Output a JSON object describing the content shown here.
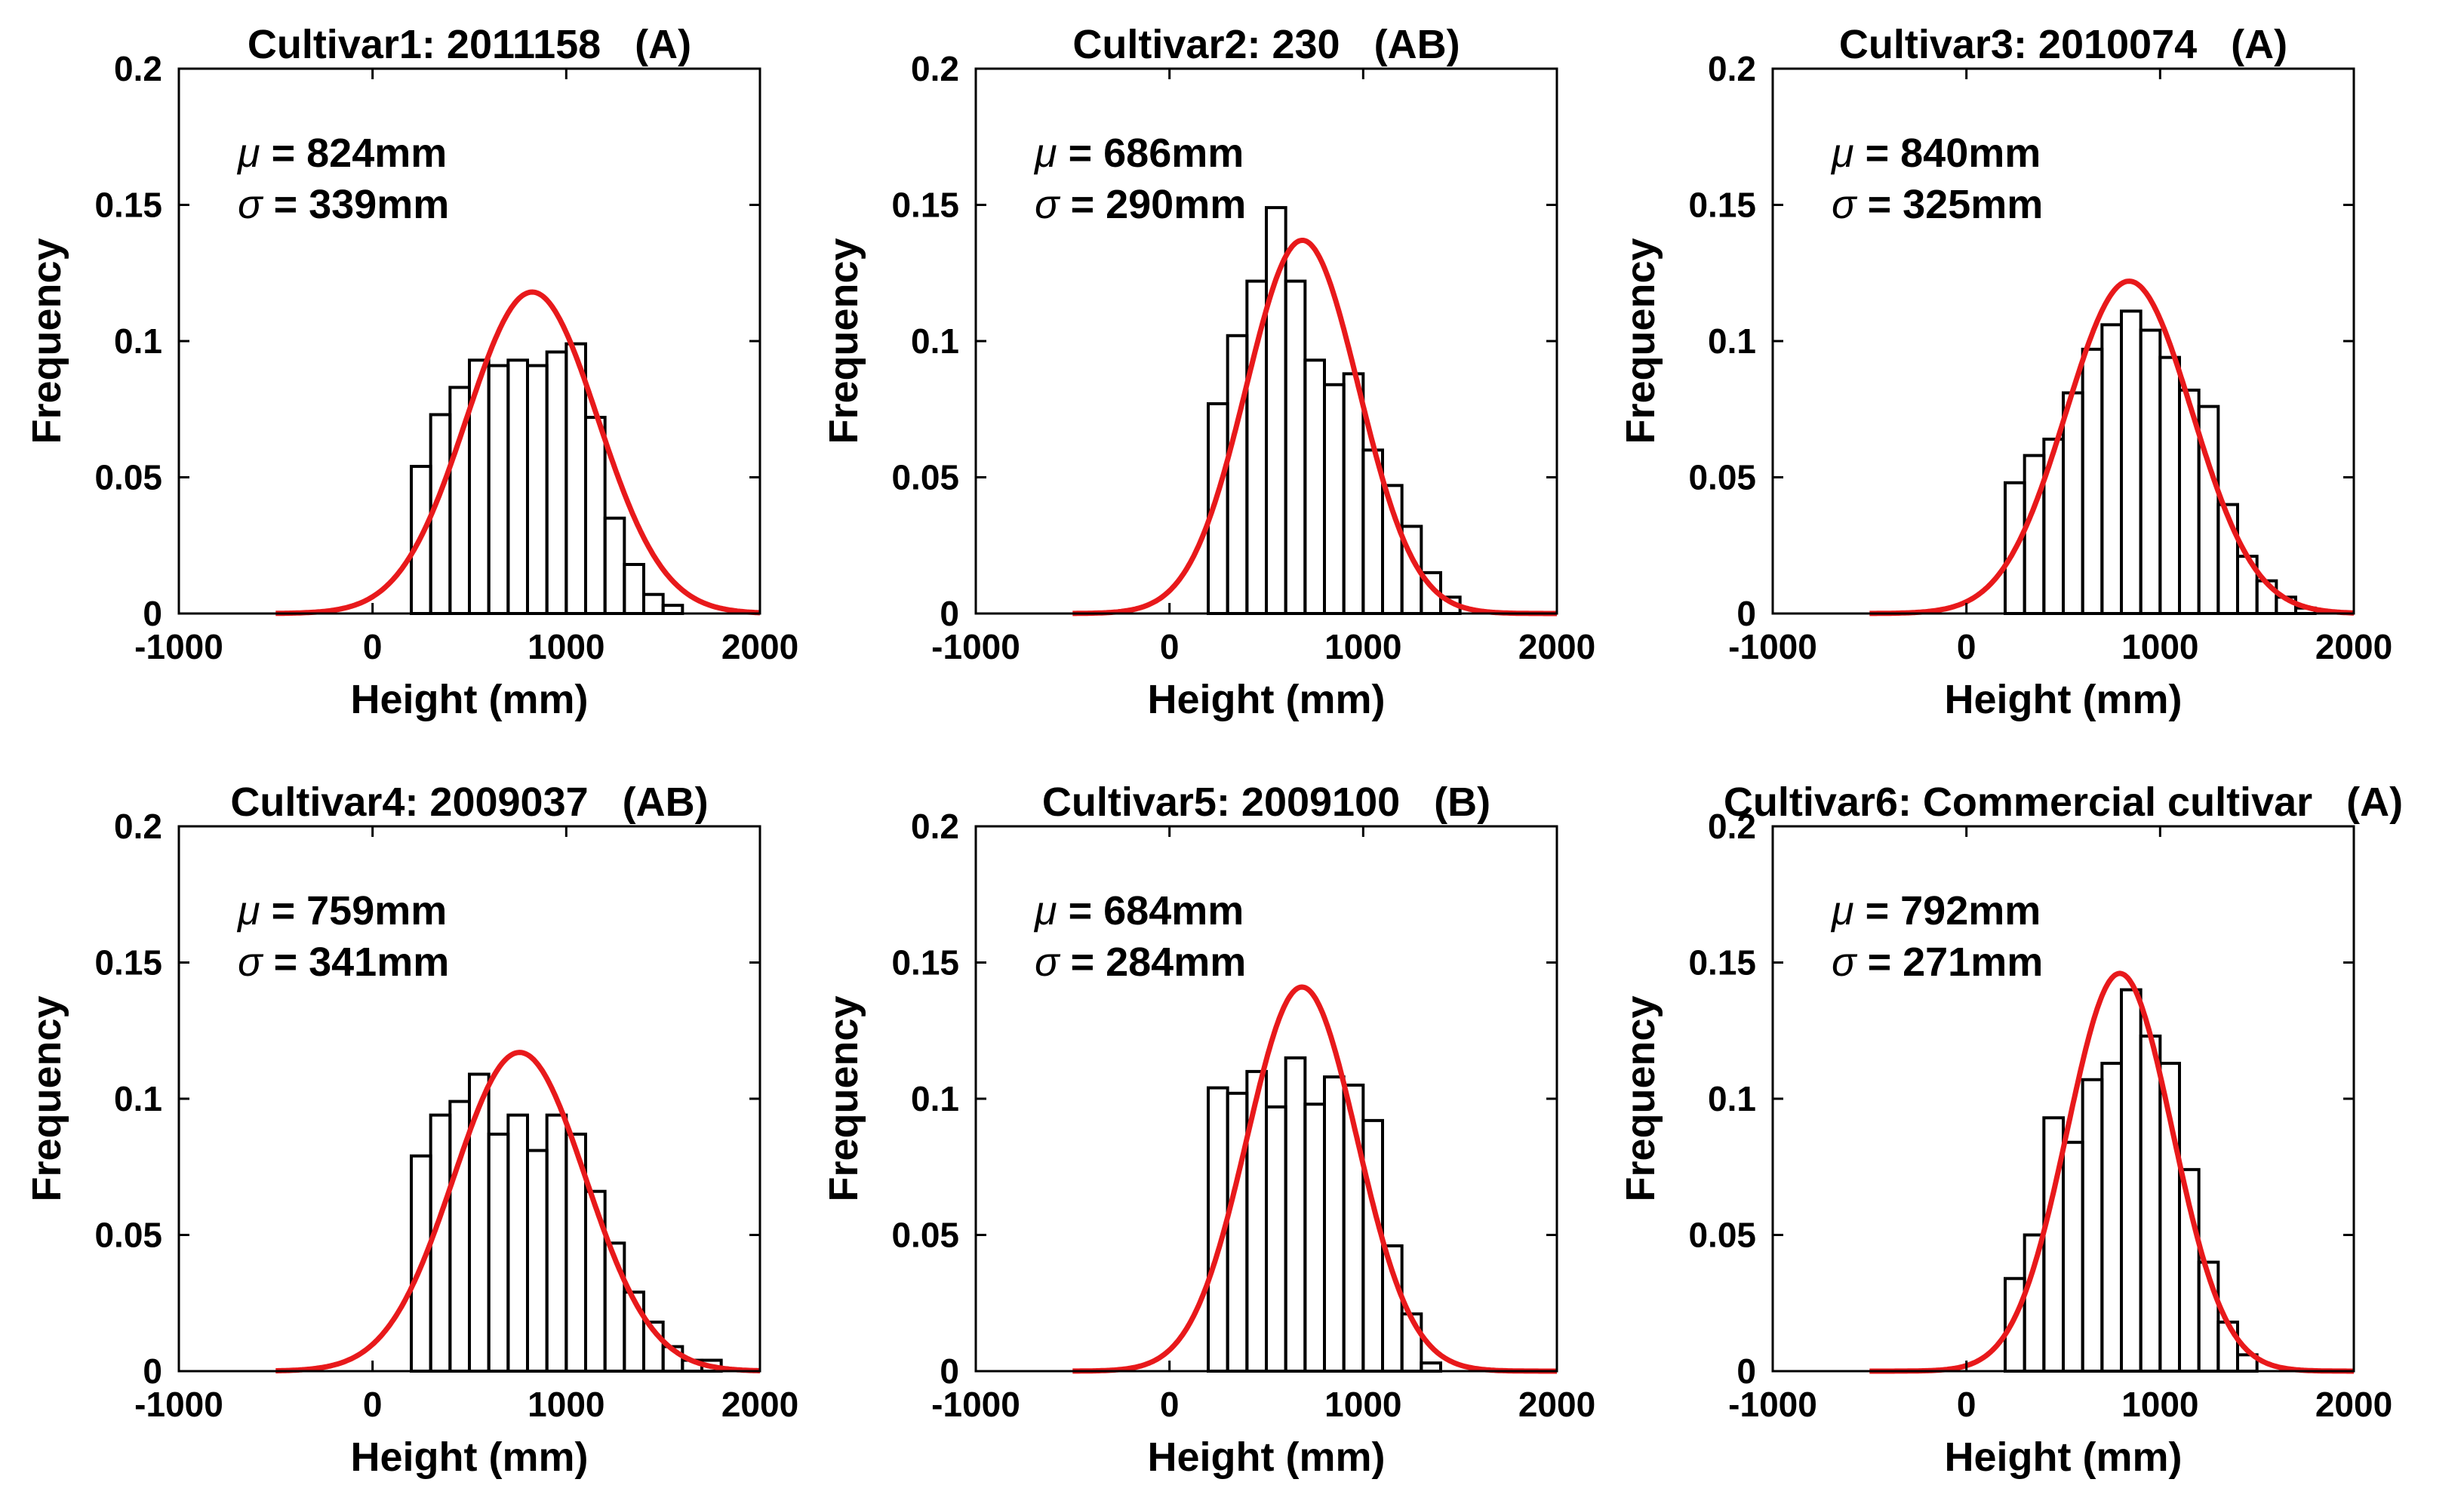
{
  "chart_data": [
    {
      "type": "bar",
      "title": "Cultivar1: 2011158   (A)",
      "xlabel": "Height (mm)",
      "ylabel": "Frequency",
      "xlim": [
        -1000,
        2000
      ],
      "ylim": [
        0,
        0.2
      ],
      "xticks": [
        "-1000",
        "0",
        "1000",
        "2000"
      ],
      "yticks": [
        "0",
        "0.05",
        "0.1",
        "0.15",
        "0.2"
      ],
      "mu_symbol": "μ",
      "sigma_symbol": "σ",
      "mu_text": " = 824mm",
      "sigma_text": " = 339mm",
      "mu": 824,
      "sigma": 339,
      "bin_start": 200,
      "bin_width": 100,
      "frequencies": [
        0.054,
        0.073,
        0.083,
        0.093,
        0.091,
        0.093,
        0.091,
        0.096,
        0.099,
        0.072,
        0.035,
        0.018,
        0.007,
        0.003,
        0,
        0
      ],
      "curve_peak": 0.118,
      "curve_range": [
        -500,
        2000
      ],
      "curve_color": "#e8191b"
    },
    {
      "type": "bar",
      "title": "Cultivar2: 230   (AB)",
      "xlabel": "Height (mm)",
      "ylabel": "Frequency",
      "xlim": [
        -1000,
        2000
      ],
      "ylim": [
        0,
        0.2
      ],
      "xticks": [
        "-1000",
        "0",
        "1000",
        "2000"
      ],
      "yticks": [
        "0",
        "0.05",
        "0.1",
        "0.15",
        "0.2"
      ],
      "mu_symbol": "μ",
      "sigma_symbol": "σ",
      "mu_text": " = 686mm",
      "sigma_text": " = 290mm",
      "mu": 686,
      "sigma": 290,
      "bin_start": 200,
      "bin_width": 100,
      "frequencies": [
        0.077,
        0.102,
        0.122,
        0.149,
        0.122,
        0.093,
        0.084,
        0.088,
        0.06,
        0.047,
        0.032,
        0.015,
        0.006,
        0,
        0,
        0
      ],
      "curve_peak": 0.137,
      "curve_range": [
        -500,
        2000
      ],
      "curve_color": "#e8191b"
    },
    {
      "type": "bar",
      "title": "Cultivar3: 2010074   (A)",
      "xlabel": "Height (mm)",
      "ylabel": "Frequency",
      "xlim": [
        -1000,
        2000
      ],
      "ylim": [
        0,
        0.2
      ],
      "xticks": [
        "-1000",
        "0",
        "1000",
        "2000"
      ],
      "yticks": [
        "0",
        "0.05",
        "0.1",
        "0.15",
        "0.2"
      ],
      "mu_symbol": "μ",
      "sigma_symbol": "σ",
      "mu_text": " = 840mm",
      "sigma_text": " = 325mm",
      "mu": 840,
      "sigma": 325,
      "bin_start": 200,
      "bin_width": 100,
      "frequencies": [
        0.048,
        0.058,
        0.064,
        0.081,
        0.097,
        0.106,
        0.111,
        0.104,
        0.094,
        0.082,
        0.076,
        0.04,
        0.021,
        0.012,
        0.006,
        0.002
      ],
      "curve_peak": 0.122,
      "curve_range": [
        -500,
        2000
      ],
      "curve_color": "#e8191b"
    },
    {
      "type": "bar",
      "title": "Cultivar4: 2009037   (AB)",
      "xlabel": "Height (mm)",
      "ylabel": "Frequency",
      "xlim": [
        -1000,
        2000
      ],
      "ylim": [
        0,
        0.2
      ],
      "xticks": [
        "-1000",
        "0",
        "1000",
        "2000"
      ],
      "yticks": [
        "0",
        "0.05",
        "0.1",
        "0.15",
        "0.2"
      ],
      "mu_symbol": "μ",
      "sigma_symbol": "σ",
      "mu_text": " = 759mm",
      "sigma_text": " = 341mm",
      "mu": 759,
      "sigma": 341,
      "bin_start": 200,
      "bin_width": 100,
      "frequencies": [
        0.079,
        0.094,
        0.099,
        0.109,
        0.087,
        0.094,
        0.081,
        0.094,
        0.087,
        0.066,
        0.047,
        0.029,
        0.018,
        0.009,
        0.004,
        0.004
      ],
      "curve_peak": 0.117,
      "curve_range": [
        -500,
        2000
      ],
      "curve_color": "#e8191b"
    },
    {
      "type": "bar",
      "title": "Cultivar5: 2009100   (B)",
      "xlabel": "Height (mm)",
      "ylabel": "Frequency",
      "xlim": [
        -1000,
        2000
      ],
      "ylim": [
        0,
        0.2
      ],
      "xticks": [
        "-1000",
        "0",
        "1000",
        "2000"
      ],
      "yticks": [
        "0",
        "0.05",
        "0.1",
        "0.15",
        "0.2"
      ],
      "mu_symbol": "μ",
      "sigma_symbol": "σ",
      "mu_text": " = 684mm",
      "sigma_text": " = 284mm",
      "mu": 684,
      "sigma": 284,
      "bin_start": 200,
      "bin_width": 100,
      "frequencies": [
        0.104,
        0.102,
        0.11,
        0.097,
        0.115,
        0.098,
        0.108,
        0.105,
        0.092,
        0.046,
        0.021,
        0.003
      ],
      "curve_peak": 0.141,
      "curve_range": [
        -500,
        2000
      ],
      "curve_color": "#e8191b"
    },
    {
      "type": "bar",
      "title": "Cultivar6: Commercial cultivar   (A)",
      "xlabel": "Height (mm)",
      "ylabel": "Frequency",
      "xlim": [
        -1000,
        2000
      ],
      "ylim": [
        0,
        0.2
      ],
      "xticks": [
        "-1000",
        "0",
        "1000",
        "2000"
      ],
      "yticks": [
        "0",
        "0.05",
        "0.1",
        "0.15",
        "0.2"
      ],
      "mu_symbol": "μ",
      "sigma_symbol": "σ",
      "mu_text": " = 792mm",
      "sigma_text": " = 271mm",
      "mu": 792,
      "sigma": 271,
      "bin_start": 200,
      "bin_width": 100,
      "frequencies": [
        0.034,
        0.05,
        0.093,
        0.084,
        0.107,
        0.113,
        0.14,
        0.123,
        0.113,
        0.074,
        0.04,
        0.018,
        0.006
      ],
      "curve_peak": 0.146,
      "curve_range": [
        -500,
        2000
      ],
      "curve_color": "#e8191b"
    }
  ]
}
